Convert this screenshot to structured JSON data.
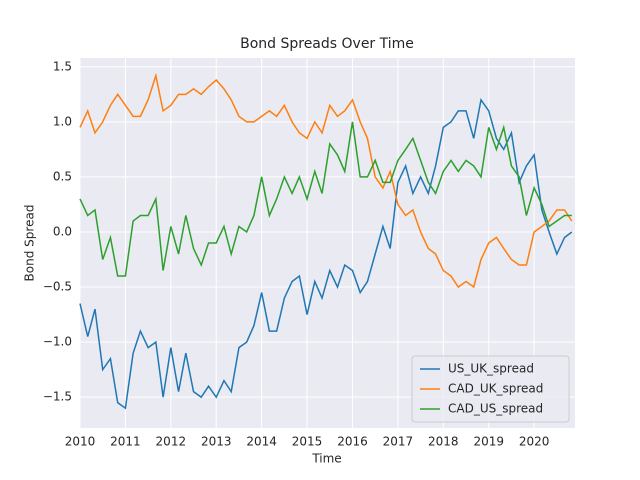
{
  "chart_data": {
    "type": "line",
    "title": "Bond Spreads Over Time",
    "xlabel": "Time",
    "ylabel": "Bond Spread",
    "x": [
      2010,
      2010.17,
      2010.33,
      2010.5,
      2010.67,
      2010.83,
      2011,
      2011.17,
      2011.33,
      2011.5,
      2011.67,
      2011.83,
      2012,
      2012.17,
      2012.33,
      2012.5,
      2012.67,
      2012.83,
      2013,
      2013.17,
      2013.33,
      2013.5,
      2013.67,
      2013.83,
      2014,
      2014.17,
      2014.33,
      2014.5,
      2014.67,
      2014.83,
      2015,
      2015.17,
      2015.33,
      2015.5,
      2015.67,
      2015.83,
      2016,
      2016.17,
      2016.33,
      2016.5,
      2016.67,
      2016.83,
      2017,
      2017.17,
      2017.33,
      2017.5,
      2017.67,
      2017.83,
      2018,
      2018.17,
      2018.33,
      2018.5,
      2018.67,
      2018.83,
      2019,
      2019.17,
      2019.33,
      2019.5,
      2019.67,
      2019.83,
      2020,
      2020.17,
      2020.33,
      2020.5,
      2020.67,
      2020.83
    ],
    "series": [
      {
        "name": "US_UK_spread",
        "color": "#1f77b4",
        "values": [
          -0.65,
          -0.95,
          -0.7,
          -1.25,
          -1.15,
          -1.55,
          -1.6,
          -1.1,
          -0.9,
          -1.05,
          -1.0,
          -1.5,
          -1.05,
          -1.45,
          -1.1,
          -1.45,
          -1.5,
          -1.4,
          -1.5,
          -1.35,
          -1.45,
          -1.05,
          -1.0,
          -0.85,
          -0.55,
          -0.9,
          -0.9,
          -0.6,
          -0.45,
          -0.4,
          -0.75,
          -0.45,
          -0.6,
          -0.35,
          -0.5,
          -0.3,
          -0.35,
          -0.55,
          -0.45,
          -0.2,
          0.05,
          -0.15,
          0.45,
          0.6,
          0.35,
          0.5,
          0.35,
          0.6,
          0.95,
          1.0,
          1.1,
          1.1,
          0.85,
          1.2,
          1.1,
          0.85,
          0.75,
          0.9,
          0.45,
          0.6,
          0.7,
          0.2,
          0.0,
          -0.2,
          -0.05,
          0.0
        ]
      },
      {
        "name": "CAD_UK_spread",
        "color": "#ff7f0e",
        "values": [
          0.95,
          1.1,
          0.9,
          1.0,
          1.15,
          1.25,
          1.15,
          1.05,
          1.05,
          1.2,
          1.42,
          1.1,
          1.15,
          1.25,
          1.25,
          1.3,
          1.25,
          1.32,
          1.38,
          1.3,
          1.2,
          1.05,
          1.0,
          1.0,
          1.05,
          1.1,
          1.05,
          1.15,
          1.0,
          0.9,
          0.85,
          1.0,
          0.9,
          1.15,
          1.05,
          1.1,
          1.2,
          1.0,
          0.85,
          0.5,
          0.4,
          0.55,
          0.25,
          0.15,
          0.2,
          0.0,
          -0.15,
          -0.2,
          -0.35,
          -0.4,
          -0.5,
          -0.45,
          -0.5,
          -0.25,
          -0.1,
          -0.05,
          -0.15,
          -0.25,
          -0.3,
          -0.3,
          0.0,
          0.05,
          0.1,
          0.2,
          0.2,
          0.1
        ]
      },
      {
        "name": "CAD_US_spread",
        "color": "#2ca02c",
        "values": [
          0.3,
          0.15,
          0.2,
          -0.25,
          -0.05,
          -0.4,
          -0.4,
          0.1,
          0.15,
          0.15,
          0.3,
          -0.35,
          0.05,
          -0.2,
          0.15,
          -0.15,
          -0.3,
          -0.1,
          -0.1,
          0.05,
          -0.2,
          0.05,
          0.0,
          0.15,
          0.5,
          0.15,
          0.3,
          0.5,
          0.35,
          0.5,
          0.3,
          0.55,
          0.35,
          0.8,
          0.7,
          0.55,
          1.0,
          0.5,
          0.5,
          0.65,
          0.45,
          0.45,
          0.65,
          0.75,
          0.85,
          0.65,
          0.45,
          0.35,
          0.55,
          0.65,
          0.55,
          0.65,
          0.6,
          0.5,
          0.95,
          0.75,
          0.95,
          0.6,
          0.5,
          0.15,
          0.4,
          0.25,
          0.05,
          0.1,
          0.15,
          0.15
        ]
      }
    ],
    "xlim": [
      2010,
      2020.9
    ],
    "xticks": [
      2010,
      2011,
      2012,
      2013,
      2014,
      2015,
      2016,
      2017,
      2018,
      2019,
      2020
    ],
    "ylim": [
      -1.78,
      1.58
    ],
    "yticks": [
      {
        "value": -1.5,
        "label": "−1.5"
      },
      {
        "value": -1,
        "label": "−1.0"
      },
      {
        "value": -0.5,
        "label": "−0.5"
      },
      {
        "value": 0,
        "label": "0.0"
      },
      0.5,
      {
        "value": 1,
        "label": "1.0"
      },
      1.5
    ],
    "grid": true,
    "legend": "lower right"
  }
}
